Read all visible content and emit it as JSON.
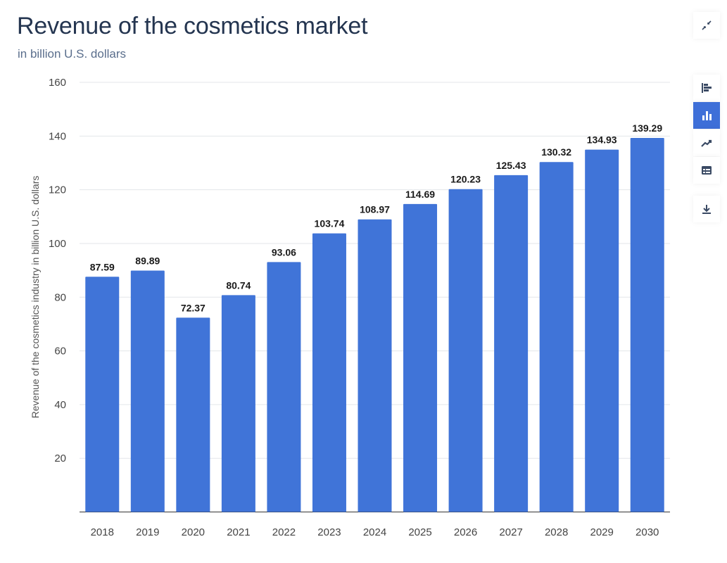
{
  "header": {
    "title": "Revenue of the cosmetics market",
    "subtitle": "in billion U.S. dollars"
  },
  "toolbar": {
    "items": [
      "collapse-icon",
      "horizontal-bar-chart-icon",
      "bar-chart-icon",
      "line-chart-icon",
      "table-icon",
      "download-icon"
    ],
    "active": "bar-chart-icon",
    "accent": "#3e6fd8"
  },
  "chart_data": {
    "type": "bar",
    "title": "Revenue of the cosmetics market",
    "subtitle": "in billion U.S. dollars",
    "xlabel": "",
    "ylabel": "Revenue of the cosmetics industry in billion U.S. dollars",
    "categories": [
      "2018",
      "2019",
      "2020",
      "2021",
      "2022",
      "2023",
      "2024",
      "2025",
      "2026",
      "2027",
      "2028",
      "2029",
      "2030"
    ],
    "values": [
      87.59,
      89.89,
      72.37,
      80.74,
      93.06,
      103.74,
      108.97,
      114.69,
      120.23,
      125.43,
      130.32,
      134.93,
      139.29
    ],
    "value_labels": [
      "87.59",
      "89.89",
      "72.37",
      "80.74",
      "93.06",
      "103.74",
      "108.97",
      "114.69",
      "120.23",
      "125.43",
      "130.32",
      "134.93",
      "139.29"
    ],
    "ylim": [
      0,
      160
    ],
    "yticks": [
      "20",
      "40",
      "60",
      "80",
      "100",
      "120",
      "140",
      "160"
    ],
    "grid": true,
    "bar_color": "#4074d8"
  }
}
